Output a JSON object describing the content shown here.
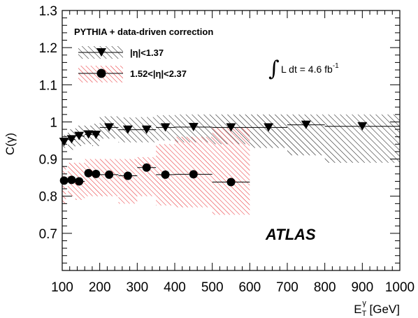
{
  "chart_data": {
    "type": "scatter",
    "ylabel": "C(γ)",
    "xlabel": {
      "base": "E",
      "sup": "γ",
      "sub": "T",
      "unit": " [GeV]"
    },
    "xlim": [
      100,
      1000
    ],
    "ylim": [
      0.6,
      1.3
    ],
    "xticks": [
      100,
      200,
      300,
      400,
      500,
      600,
      700,
      800,
      900,
      1000
    ],
    "yticks": [
      0.7,
      0.8,
      0.9,
      1,
      1.1,
      1.2,
      1.3
    ],
    "xtick_labels": [
      "100",
      "200",
      "300",
      "400",
      "500",
      "600",
      "700",
      "800",
      "900",
      "1000"
    ],
    "ytick_labels": [
      "0.7",
      "0.8",
      "0.9",
      "1",
      "1.1",
      "1.2",
      "1.3"
    ],
    "grid": false,
    "legend_header": "PYTHIA + data-driven correction",
    "legend_position": "top-left",
    "lumi": {
      "integral": "∫",
      "text": "L dt =  4.6 fb",
      "sup": "-1"
    },
    "experiment_label": "ATLAS",
    "series": [
      {
        "name": "|η|<1.37",
        "marker": "triangle-down",
        "color": "#000000",
        "band_color": "#000000",
        "points": [
          {
            "x": 105,
            "xlo": 100,
            "xhi": 110,
            "y": 0.946,
            "band": [
              0.93,
              0.965
            ]
          },
          {
            "x": 125,
            "xlo": 115,
            "xhi": 135,
            "y": 0.953,
            "band": [
              0.925,
              0.98
            ]
          },
          {
            "x": 145,
            "xlo": 135,
            "xhi": 160,
            "y": 0.962,
            "band": [
              0.935,
              0.99
            ]
          },
          {
            "x": 170,
            "xlo": 160,
            "xhi": 180,
            "y": 0.966,
            "band": [
              0.94,
              0.99
            ]
          },
          {
            "x": 190,
            "xlo": 180,
            "xhi": 200,
            "y": 0.965,
            "band": [
              0.935,
              0.995
            ]
          },
          {
            "x": 225,
            "xlo": 200,
            "xhi": 250,
            "y": 0.985,
            "band": [
              0.955,
              1.015
            ]
          },
          {
            "x": 275,
            "xlo": 250,
            "xhi": 300,
            "y": 0.979,
            "band": [
              0.945,
              1.012
            ]
          },
          {
            "x": 325,
            "xlo": 300,
            "xhi": 350,
            "y": 0.979,
            "band": [
              0.945,
              1.013
            ]
          },
          {
            "x": 375,
            "xlo": 350,
            "xhi": 400,
            "y": 0.985,
            "band": [
              0.95,
              1.018
            ]
          },
          {
            "x": 450,
            "xlo": 400,
            "xhi": 500,
            "y": 0.986,
            "band": [
              0.945,
              1.02
            ]
          },
          {
            "x": 550,
            "xlo": 500,
            "xhi": 600,
            "y": 0.985,
            "band": [
              0.94,
              1.02
            ]
          },
          {
            "x": 650,
            "xlo": 600,
            "xhi": 700,
            "y": 0.985,
            "band": [
              0.93,
              1.02
            ]
          },
          {
            "x": 750,
            "xlo": 700,
            "xhi": 800,
            "y": 0.992,
            "band": [
              0.91,
              1.02
            ]
          },
          {
            "x": 900,
            "xlo": 800,
            "xhi": 1000,
            "y": 0.988,
            "band": [
              0.89,
              1.02
            ]
          }
        ]
      },
      {
        "name": "1.52<|η|<2.37",
        "marker": "circle",
        "color": "#000000",
        "band_color": "#e8262b",
        "points": [
          {
            "x": 105,
            "xlo": 100,
            "xhi": 110,
            "y": 0.842,
            "band": [
              0.78,
              0.88
            ]
          },
          {
            "x": 125,
            "xlo": 115,
            "xhi": 135,
            "y": 0.844,
            "band": [
              0.8,
              0.89
            ]
          },
          {
            "x": 145,
            "xlo": 135,
            "xhi": 160,
            "y": 0.84,
            "band": [
              0.79,
              0.89
            ]
          },
          {
            "x": 170,
            "xlo": 160,
            "xhi": 180,
            "y": 0.862,
            "band": [
              0.8,
              0.9
            ]
          },
          {
            "x": 190,
            "xlo": 180,
            "xhi": 200,
            "y": 0.86,
            "band": [
              0.8,
              0.9
            ]
          },
          {
            "x": 225,
            "xlo": 200,
            "xhi": 250,
            "y": 0.858,
            "band": [
              0.8,
              0.9
            ]
          },
          {
            "x": 275,
            "xlo": 250,
            "xhi": 300,
            "y": 0.855,
            "band": [
              0.78,
              0.9
            ]
          },
          {
            "x": 325,
            "xlo": 300,
            "xhi": 350,
            "y": 0.877,
            "band": [
              0.8,
              0.905
            ]
          },
          {
            "x": 375,
            "xlo": 350,
            "xhi": 400,
            "y": 0.858,
            "band": [
              0.775,
              0.94
            ]
          },
          {
            "x": 450,
            "xlo": 400,
            "xhi": 500,
            "y": 0.859,
            "band": [
              0.77,
              0.96
            ]
          },
          {
            "x": 550,
            "xlo": 500,
            "xhi": 600,
            "y": 0.838,
            "band": [
              0.75,
              0.985
            ]
          }
        ]
      }
    ]
  },
  "colors": {
    "axis": "#000000",
    "central_band": "#000000",
    "forward_band": "#e8262b"
  }
}
